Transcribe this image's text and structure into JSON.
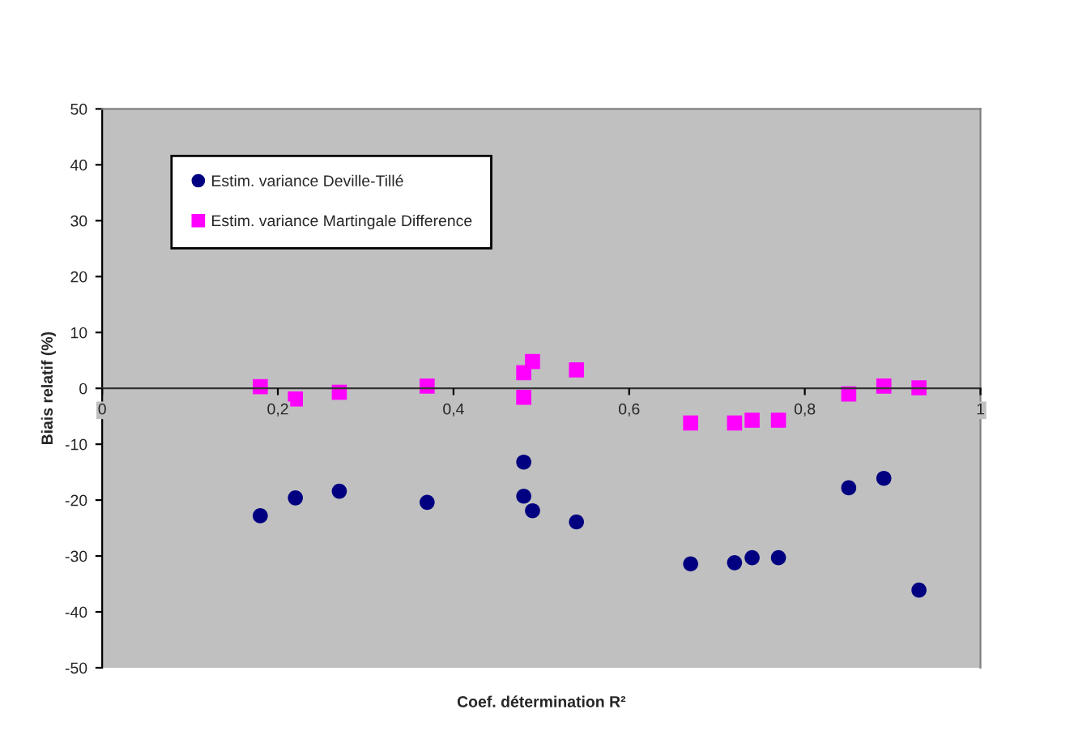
{
  "chart_data": {
    "type": "scatter",
    "xlabel": "Coef. détermination R²",
    "ylabel": "Biais relatif (%)",
    "xlim": [
      0,
      1
    ],
    "xticks": [
      0,
      {
        "value": 0.2,
        "label": "0,2"
      },
      {
        "value": 0.4,
        "label": "0,4"
      },
      {
        "value": 0.6,
        "label": "0,6"
      },
      {
        "value": 0.8,
        "label": "0,8"
      },
      1
    ],
    "ylim": [
      -50,
      50
    ],
    "yticks": [
      -50,
      -40,
      -30,
      -20,
      -10,
      0,
      10,
      20,
      30,
      40,
      50
    ],
    "grid": false,
    "legend": "top left",
    "series": [
      {
        "name": "Estim. variance Deville-Tillé",
        "color": "#000080",
        "marker": "circle",
        "x": [
          0.18,
          0.22,
          0.27,
          0.37,
          0.48,
          0.48,
          0.49,
          0.54,
          0.67,
          0.72,
          0.74,
          0.77,
          0.85,
          0.89,
          0.93
        ],
        "values": [
          -22.8,
          -19.6,
          -18.4,
          -20.4,
          -13.2,
          -19.3,
          -21.9,
          -23.9,
          -31.4,
          -31.2,
          -30.3,
          -30.3,
          -17.8,
          -16.1,
          -36.1
        ]
      },
      {
        "name": "Estim. variance Martingale Difference",
        "color": "#ff00ff",
        "marker": "square",
        "x": [
          0.18,
          0.22,
          0.27,
          0.37,
          0.48,
          0.49,
          0.48,
          0.54,
          0.67,
          0.72,
          0.74,
          0.77,
          0.85,
          0.89,
          0.93
        ],
        "values": [
          0.3,
          -1.9,
          -0.7,
          0.4,
          2.8,
          4.8,
          -1.6,
          3.3,
          -6.2,
          -6.2,
          -5.7,
          -5.7,
          -1.0,
          0.4,
          0.1
        ]
      }
    ]
  }
}
